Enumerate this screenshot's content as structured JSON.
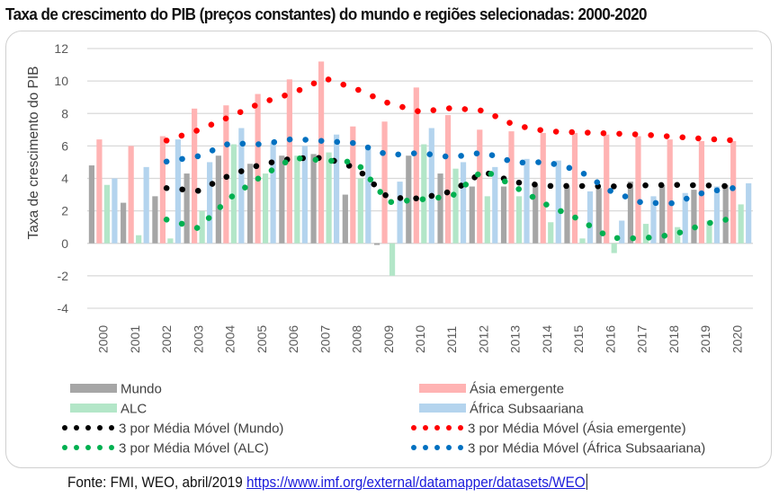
{
  "chart_data": {
    "type": "bar",
    "title": "Taxa de crescimento do PIB (preços constantes) do mundo e regiões selecionadas: 2000-2020",
    "xlabel": "",
    "ylabel": "Taxa de crescimento do PIB",
    "ylim": [
      -4,
      12
    ],
    "yticks": [
      -4,
      -2,
      0,
      2,
      4,
      6,
      8,
      10,
      12
    ],
    "grid": true,
    "legend_position": "bottom",
    "categories": [
      "2000",
      "2001",
      "2002",
      "2003",
      "2004",
      "2005",
      "2006",
      "2007",
      "2008",
      "2009",
      "2010",
      "2011",
      "2012",
      "2013",
      "2014",
      "2015",
      "2016",
      "2017",
      "2018",
      "2019",
      "2020"
    ],
    "series": [
      {
        "name": "Mundo",
        "color": "#a6a6a6",
        "values": [
          4.8,
          2.5,
          2.9,
          4.3,
          5.4,
          4.9,
          5.4,
          5.5,
          3.0,
          -0.1,
          5.4,
          4.3,
          3.5,
          3.5,
          3.6,
          3.5,
          3.4,
          3.8,
          3.6,
          3.3,
          3.6
        ]
      },
      {
        "name": "Ásia emergente",
        "color": "#ffb3b3",
        "values": [
          6.4,
          6.0,
          6.6,
          8.3,
          8.5,
          9.2,
          10.1,
          11.2,
          7.2,
          7.5,
          9.6,
          7.9,
          7.0,
          6.9,
          6.8,
          6.8,
          6.7,
          6.6,
          6.4,
          6.3,
          6.3
        ]
      },
      {
        "name": "ALC",
        "color": "#b3e6c8",
        "values": [
          3.6,
          0.5,
          0.3,
          2.0,
          6.1,
          4.3,
          5.4,
          5.6,
          4.0,
          -2.0,
          6.1,
          4.6,
          2.9,
          2.9,
          1.3,
          0.3,
          -0.6,
          1.2,
          1.0,
          1.4,
          2.4
        ]
      },
      {
        "name": "África Subsaariana",
        "color": "#b4d4ee",
        "values": [
          4.0,
          4.7,
          6.4,
          5.0,
          7.1,
          6.2,
          6.0,
          6.7,
          5.8,
          3.8,
          7.1,
          5.0,
          4.7,
          5.2,
          5.1,
          3.2,
          1.4,
          2.9,
          3.1,
          3.5,
          3.7
        ]
      }
    ],
    "trendlines": [
      {
        "name": "3 por Média Móvel (Mundo)",
        "type": "moving-average",
        "period": 3,
        "source_series": "Mundo",
        "color": "#000000"
      },
      {
        "name": "3 por Média Móvel (Ásia emergente)",
        "type": "moving-average",
        "period": 3,
        "source_series": "Ásia emergente",
        "color": "#ff0000"
      },
      {
        "name": "3 por Média Móvel (ALC)",
        "type": "moving-average",
        "period": 3,
        "source_series": "ALC",
        "color": "#00b050"
      },
      {
        "name": "3 por Média Móvel (África Subsaariana)",
        "type": "moving-average",
        "period": 3,
        "source_series": "África Subsaariana",
        "color": "#0070c0"
      }
    ],
    "legend": [
      {
        "label": "Mundo",
        "kind": "bar",
        "color": "#a6a6a6"
      },
      {
        "label": "Ásia emergente",
        "kind": "bar",
        "color": "#ffb3b3"
      },
      {
        "label": "ALC",
        "kind": "bar",
        "color": "#b3e6c8"
      },
      {
        "label": "África Subsaariana",
        "kind": "bar",
        "color": "#b4d4ee"
      },
      {
        "label": "3 por Média Móvel (Mundo)",
        "kind": "dots",
        "color": "#000000"
      },
      {
        "label": "3 por Média Móvel (Ásia emergente)",
        "kind": "dots",
        "color": "#ff0000"
      },
      {
        "label": "3 por Média Móvel (ALC)",
        "kind": "dots",
        "color": "#00b050"
      },
      {
        "label": "3 por Média Móvel (África Subsaariana)",
        "kind": "dots",
        "color": "#0070c0"
      }
    ]
  },
  "source": {
    "prefix": "Fonte: FMI, WEO, abril/2019 ",
    "link_text": "https://www.imf.org/external/datamapper/datasets/WEO"
  }
}
